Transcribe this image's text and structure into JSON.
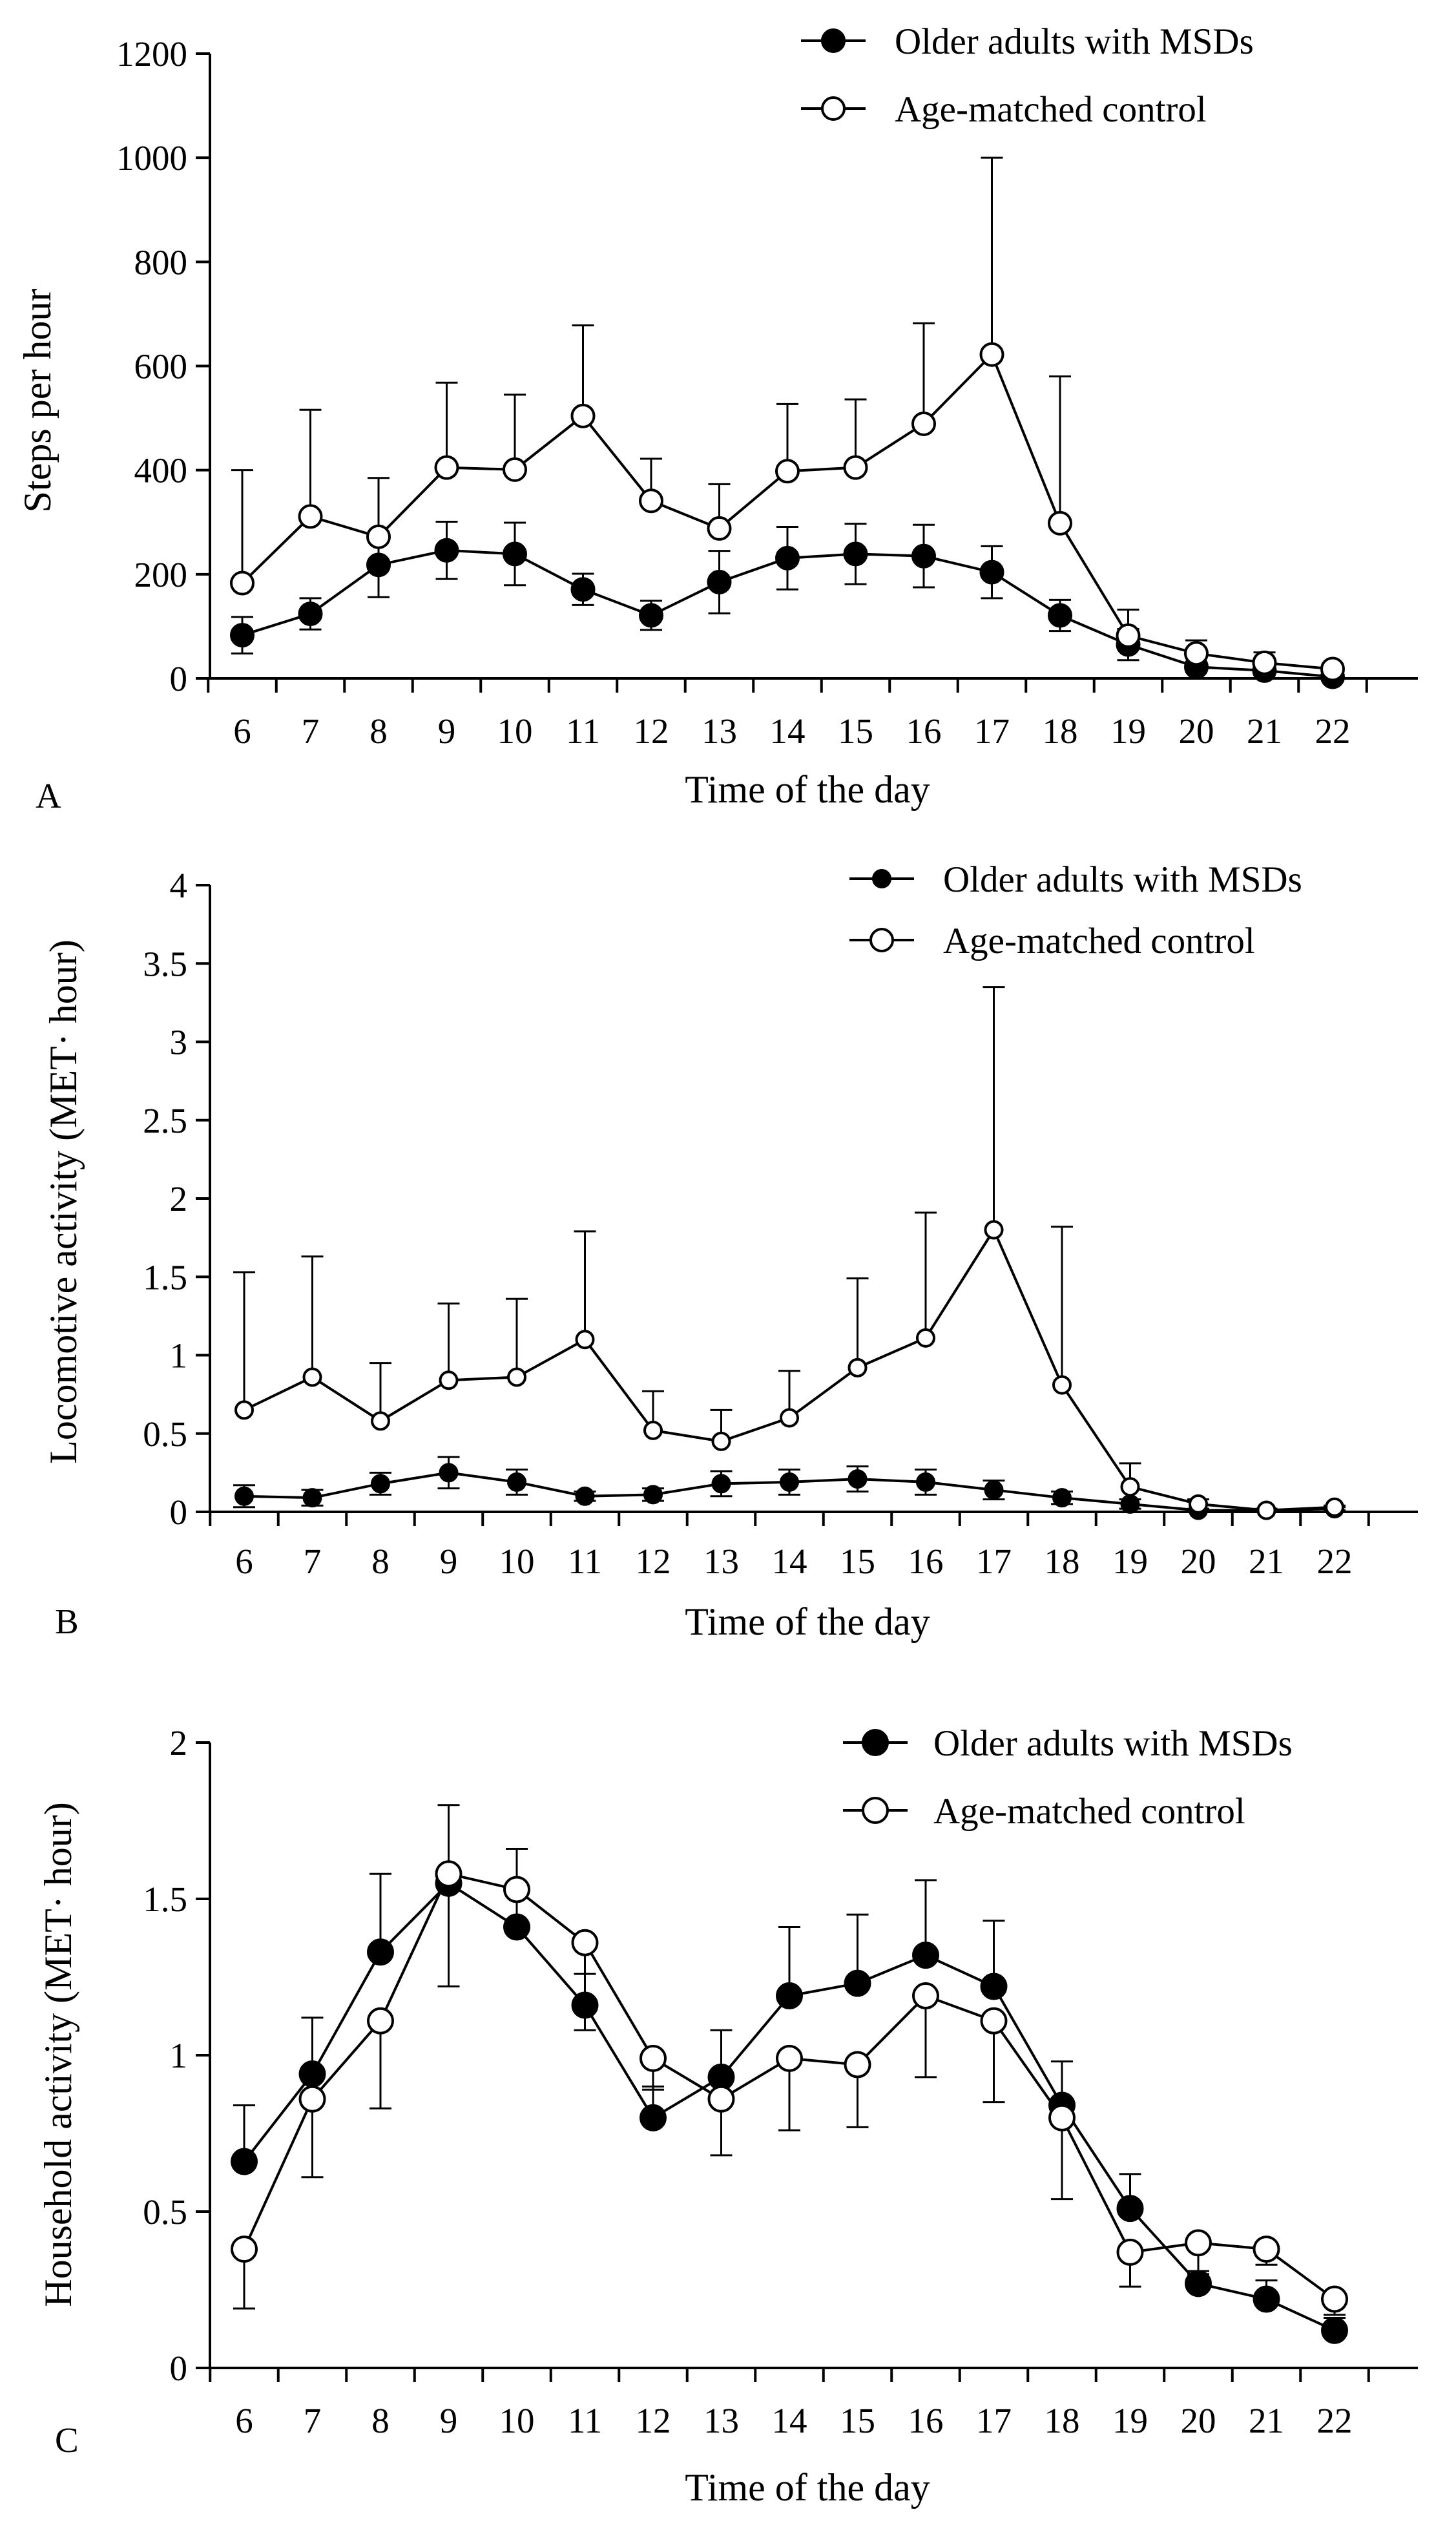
{
  "chart_data": [
    {
      "type": "line",
      "panel_label": "A",
      "xlabel": "Time of the day",
      "ylabel": "Steps per hour",
      "ylim": [
        0,
        1200
      ],
      "yticks": [
        "0",
        "200",
        "400",
        "600",
        "800",
        "1000",
        "1200"
      ],
      "categories": [
        "6",
        "7",
        "8",
        "9",
        "10",
        "11",
        "12",
        "13",
        "14",
        "15",
        "16",
        "17",
        "18",
        "19",
        "20",
        "21",
        "22"
      ],
      "error_bars": "upper for control, symmetric for MSDs",
      "series": [
        {
          "name": "Older adults with MSDs",
          "marker": "filled-circle",
          "values": [
            83,
            124,
            218,
            246,
            239,
            171,
            121,
            185,
            231,
            239,
            235,
            204,
            121,
            65,
            22,
            15,
            3
          ],
          "errors": [
            35,
            30,
            62,
            55,
            60,
            30,
            28,
            60,
            60,
            58,
            60,
            50,
            30,
            30,
            10,
            8,
            3
          ]
        },
        {
          "name": "Age-matched control",
          "marker": "open-circle",
          "values": [
            183,
            311,
            272,
            405,
            401,
            504,
            341,
            288,
            398,
            405,
            489,
            622,
            298,
            82,
            48,
            30,
            18
          ],
          "errors": [
            217,
            205,
            113,
            163,
            144,
            174,
            81,
            85,
            129,
            131,
            193,
            378,
            282,
            50,
            25,
            20,
            10
          ]
        }
      ]
    },
    {
      "type": "line",
      "panel_label": "B",
      "xlabel": "Time of the day",
      "ylabel": "Locomotive activity (MET· hour)",
      "ylim": [
        0,
        4
      ],
      "yticks": [
        "0",
        "0.5",
        "1",
        "1.5",
        "2",
        "2.5",
        "3",
        "3.5",
        "4"
      ],
      "categories": [
        "6",
        "7",
        "8",
        "9",
        "10",
        "11",
        "12",
        "13",
        "14",
        "15",
        "16",
        "17",
        "18",
        "19",
        "20",
        "21",
        "22"
      ],
      "error_bars": "upper for control, symmetric for MSDs",
      "series": [
        {
          "name": "Older adults with MSDs",
          "marker": "filled-circle",
          "values": [
            0.1,
            0.09,
            0.18,
            0.25,
            0.19,
            0.1,
            0.11,
            0.18,
            0.19,
            0.21,
            0.19,
            0.14,
            0.09,
            0.05,
            0.01,
            0.01,
            0.02
          ],
          "errors": [
            0.07,
            0.05,
            0.07,
            0.1,
            0.08,
            0.03,
            0.04,
            0.08,
            0.08,
            0.08,
            0.08,
            0.06,
            0.04,
            0.03,
            0.01,
            0.01,
            0.01
          ]
        },
        {
          "name": "Age-matched control",
          "marker": "open-circle",
          "values": [
            0.65,
            0.86,
            0.58,
            0.84,
            0.86,
            1.1,
            0.52,
            0.45,
            0.6,
            0.92,
            1.11,
            1.8,
            0.81,
            0.16,
            0.05,
            0.01,
            0.03
          ],
          "errors": [
            0.88,
            0.77,
            0.37,
            0.49,
            0.5,
            0.69,
            0.25,
            0.2,
            0.3,
            0.57,
            0.8,
            1.55,
            1.01,
            0.15,
            0.03,
            0.01,
            0.01
          ]
        }
      ]
    },
    {
      "type": "line",
      "panel_label": "C",
      "xlabel": "Time of the day",
      "ylabel": "Household activity (MET· hour)",
      "ylim": [
        0,
        2
      ],
      "yticks": [
        "0",
        "0.5",
        "1",
        "1.5",
        "2"
      ],
      "categories": [
        "6",
        "7",
        "8",
        "9",
        "10",
        "11",
        "12",
        "13",
        "14",
        "15",
        "16",
        "17",
        "18",
        "19",
        "20",
        "21",
        "22"
      ],
      "error_bars": "upper for MSDs, lower for control",
      "series": [
        {
          "name": "Older adults with MSDs",
          "marker": "filled-circle",
          "values": [
            0.66,
            0.94,
            1.33,
            1.55,
            1.41,
            1.16,
            0.8,
            0.93,
            1.19,
            1.23,
            1.32,
            1.22,
            0.84,
            0.51,
            0.27,
            0.22,
            0.12
          ],
          "errors": [
            0.18,
            0.18,
            0.25,
            0.25,
            0.25,
            0.1,
            0.1,
            0.15,
            0.22,
            0.22,
            0.24,
            0.21,
            0.14,
            0.11,
            0.04,
            0.06,
            0.04
          ]
        },
        {
          "name": "Age-matched control",
          "marker": "open-circle",
          "values": [
            0.38,
            0.86,
            1.11,
            1.58,
            1.53,
            1.36,
            0.99,
            0.86,
            0.99,
            0.97,
            1.19,
            1.11,
            0.8,
            0.37,
            0.4,
            0.38,
            0.22
          ],
          "errors": [
            0.19,
            0.25,
            0.28,
            0.36,
            0.1,
            0.28,
            0.1,
            0.18,
            0.23,
            0.2,
            0.26,
            0.26,
            0.26,
            0.11,
            0.1,
            0.05,
            0.05
          ]
        }
      ]
    }
  ]
}
